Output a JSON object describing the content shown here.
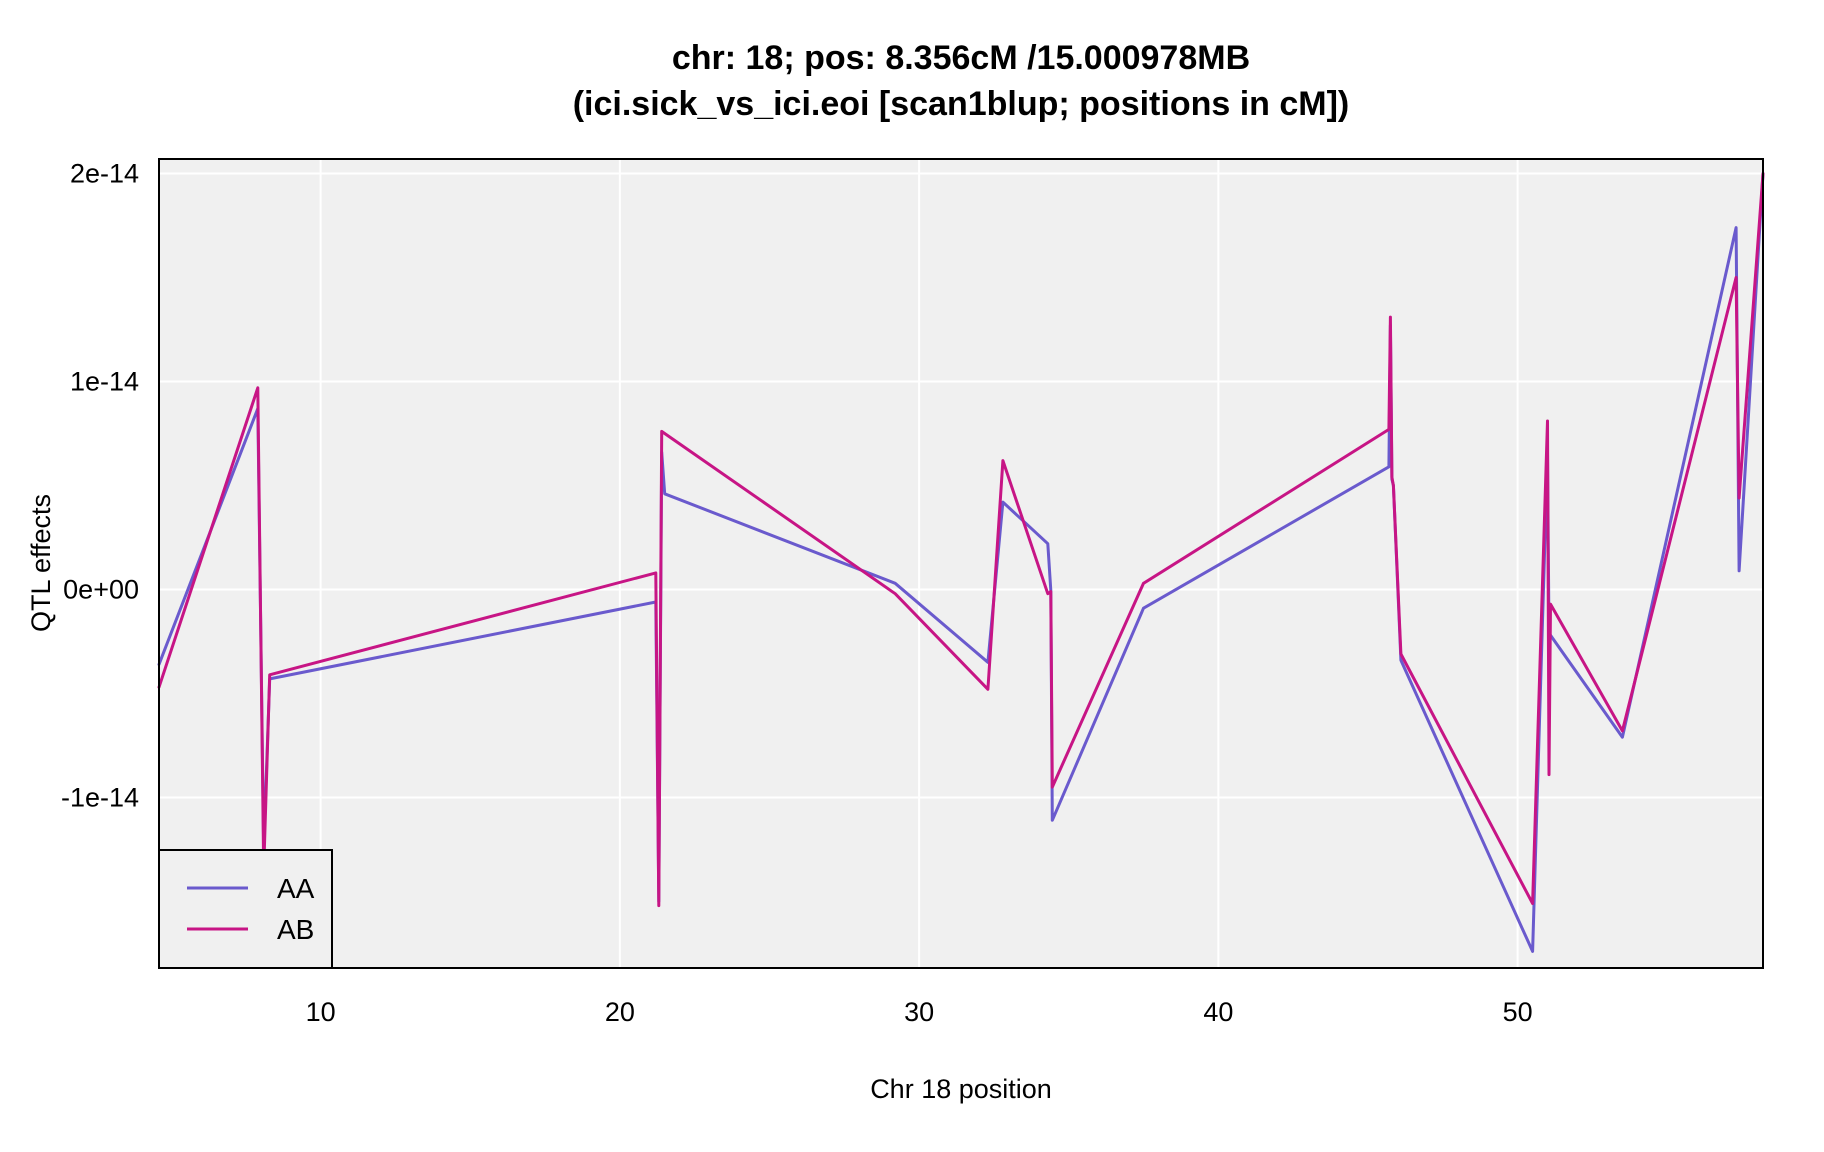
{
  "chart_data": {
    "type": "line",
    "title": "chr: 18; pos: 8.356cM /15.000978MB",
    "subtitle": "(ici.sick_vs_ici.eoi [scan1blup; positions in cM])",
    "xlabel": "Chr 18 position",
    "ylabel": "QTL effects",
    "xlim": [
      4.6,
      58.2
    ],
    "ylim": [
      -1.82e-14,
      2.07e-14
    ],
    "x_ticks": [
      10,
      20,
      30,
      40,
      50
    ],
    "x_tick_labels": [
      "10",
      "20",
      "30",
      "40",
      "50"
    ],
    "y_ticks": [
      -1e-14,
      0,
      1e-14,
      2e-14
    ],
    "y_tick_labels": [
      "-1e-14",
      "0e+00",
      "1e-14",
      "2e-14"
    ],
    "grid": true,
    "legend_position": "bottom-left",
    "series": [
      {
        "name": "AA",
        "color": "#6A5ACD",
        "x": [
          4.6,
          7.9,
          8.1,
          8.3,
          21.2,
          21.3,
          21.4,
          21.5,
          29.2,
          32.3,
          32.8,
          34.3,
          34.4,
          34.45,
          37.5,
          45.7,
          45.75,
          45.8,
          45.85,
          46.1,
          50.5,
          51.0,
          51.05,
          51.1,
          53.5,
          57.3,
          57.4,
          58.2
        ],
        "y": [
          -3.6e-15,
          8.7e-15,
          -1.25e-14,
          -4.3e-15,
          -6e-16,
          -1.5e-14,
          6.6e-15,
          4.6e-15,
          3e-16,
          -3.5e-15,
          4.2e-15,
          2.2e-15,
          -4e-17,
          -1.11e-14,
          -9e-16,
          5.9e-15,
          1.27e-14,
          5.3e-15,
          5e-15,
          -3.4e-15,
          -1.74e-14,
          6.5e-15,
          -2.1e-15,
          -2.2e-15,
          -7.1e-15,
          1.74e-14,
          9e-16,
          2e-14
        ]
      },
      {
        "name": "AB",
        "color": "#C71585",
        "x": [
          4.6,
          7.9,
          8.1,
          8.3,
          21.2,
          21.3,
          21.4,
          21.5,
          29.2,
          32.3,
          32.8,
          34.3,
          34.4,
          34.45,
          37.5,
          45.7,
          45.75,
          45.8,
          45.85,
          46.1,
          50.5,
          51.0,
          51.05,
          51.1,
          53.5,
          57.3,
          57.4,
          58.2
        ],
        "y": [
          -4.7e-15,
          9.7e-15,
          -1.35e-14,
          -4.1e-15,
          8e-16,
          -1.52e-14,
          7.6e-15,
          7.5e-15,
          -2e-16,
          -4.8e-15,
          6.2e-15,
          -2e-16,
          -1e-16,
          -9.5e-15,
          3e-16,
          7.7e-15,
          1.31e-14,
          5.4e-15,
          5e-15,
          -3.1e-15,
          -1.51e-14,
          8.1e-15,
          -8.9e-15,
          -7e-16,
          -6.8e-15,
          1.5e-14,
          4.4e-15,
          2e-14
        ]
      }
    ]
  }
}
